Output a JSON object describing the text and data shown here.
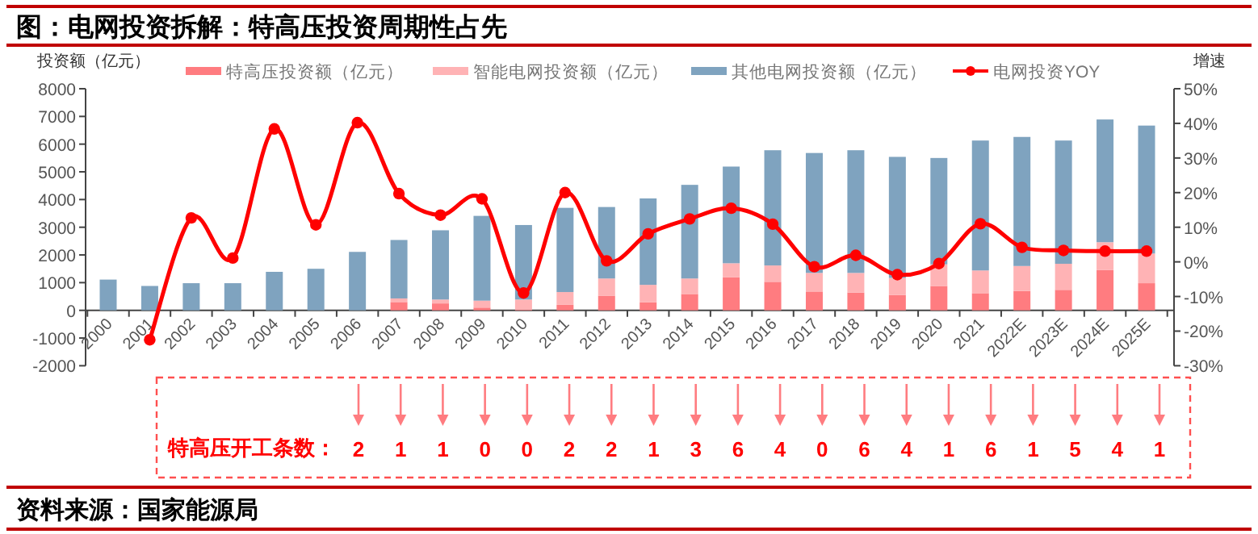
{
  "chart_data": {
    "type": "bar",
    "title": "图：电网投资拆解：特高压投资周期性占先",
    "ylabel": "投资额（亿元）",
    "y2label": "增速",
    "stacked": true,
    "legend": "top",
    "categories": [
      "2000",
      "2001",
      "2002",
      "2003",
      "2004",
      "2005",
      "2006",
      "2007",
      "2008",
      "2009",
      "2010",
      "2011",
      "2012",
      "2013",
      "2014",
      "2015",
      "2016",
      "2017",
      "2018",
      "2019",
      "2020",
      "2021",
      "2022E",
      "2023E",
      "2024E",
      "2025E"
    ],
    "series": [
      {
        "name": "特高压投资额（亿元）",
        "color": "#ff7c80",
        "values": [
          0,
          0,
          0,
          0,
          0,
          0,
          0,
          300,
          250,
          100,
          30,
          200,
          530,
          290,
          590,
          1190,
          1030,
          680,
          640,
          550,
          880,
          620,
          700,
          740,
          1460,
          980
        ]
      },
      {
        "name": "智能电网投资额（亿元）",
        "color": "#ffb3b5",
        "values": [
          0,
          0,
          0,
          0,
          0,
          0,
          0,
          130,
          140,
          250,
          360,
          460,
          620,
          630,
          560,
          510,
          590,
          670,
          710,
          620,
          780,
          820,
          900,
          940,
          1000,
          1070
        ]
      },
      {
        "name": "其他电网投资额（亿元）",
        "color": "#7fa3bf",
        "values": [
          1110,
          880,
          980,
          980,
          1390,
          1500,
          2110,
          2110,
          2500,
          3060,
          2690,
          3040,
          2580,
          3120,
          3380,
          3490,
          4160,
          4330,
          4430,
          4370,
          3840,
          4690,
          4660,
          4450,
          4430,
          4620
        ]
      },
      {
        "name": "电网投资YOY",
        "type": "line",
        "axis": "y2",
        "marker": "circle",
        "color": "#ff0000",
        "values": [
          null,
          -22.5,
          12.7,
          1.1,
          38.4,
          10.7,
          40.2,
          19.7,
          13.5,
          18.2,
          -9.0,
          20.0,
          0.3,
          8.1,
          12.4,
          15.5,
          10.9,
          -1.4,
          1.9,
          -3.7,
          -0.5,
          11.0,
          4.2,
          3.3,
          3.1,
          3.1
        ]
      }
    ],
    "ylim": [
      -2000,
      8000
    ],
    "yticks": [
      -2000,
      -1000,
      0,
      1000,
      2000,
      3000,
      4000,
      5000,
      6000,
      7000,
      8000
    ],
    "y2lim": [
      -30,
      50
    ],
    "y2ticks": [
      {
        "value": -30,
        "label": "-30%"
      },
      {
        "value": -20,
        "label": "-20%"
      },
      {
        "value": -10,
        "label": "-10%"
      },
      {
        "value": 0,
        "label": "0%"
      },
      {
        "value": 10,
        "label": "10%"
      },
      {
        "value": 20,
        "label": "20%"
      },
      {
        "value": 30,
        "label": "30%"
      },
      {
        "value": 40,
        "label": "40%"
      },
      {
        "value": 50,
        "label": "50%"
      }
    ],
    "annotations": [
      "特高压开工条数：",
      "资料来源：国家能源局",
      "2",
      "1",
      "1",
      "0",
      "0",
      "2",
      "2",
      "1",
      "3",
      "6",
      "4",
      "0",
      "6",
      "4",
      "1",
      "6",
      "1",
      "5",
      "4",
      "1"
    ]
  }
}
